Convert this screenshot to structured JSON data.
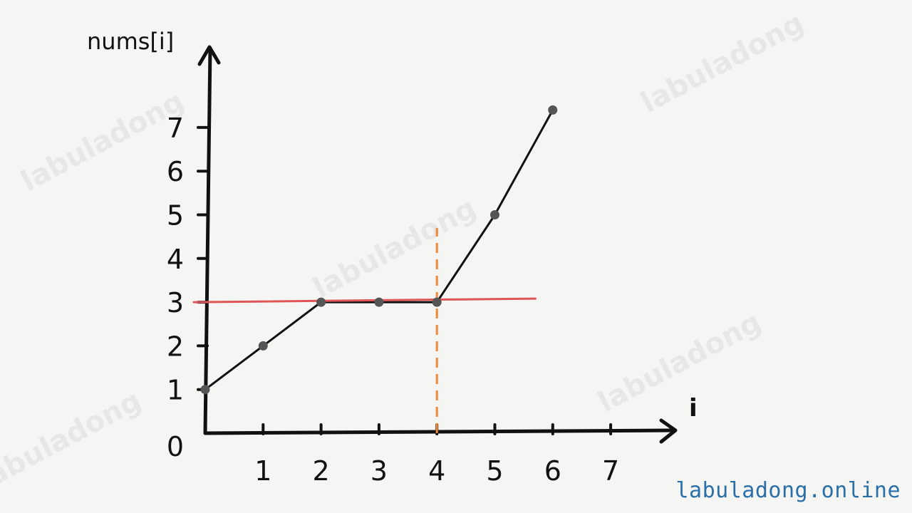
{
  "watermark_text": "labuladong",
  "footer": {
    "url": "labuladong.online"
  },
  "colors": {
    "axis": "#111111",
    "line": "#111111",
    "point": "#555555",
    "target_line": "#e05555",
    "marker_line": "#f0883a"
  },
  "chart_data": {
    "type": "line",
    "xlabel": "i",
    "ylabel": "nums[i]",
    "x_ticks": [
      1,
      2,
      3,
      4,
      5,
      6,
      7
    ],
    "y_ticks": [
      0,
      1,
      2,
      3,
      4,
      5,
      6,
      7
    ],
    "xlim": [
      0,
      7
    ],
    "ylim": [
      0,
      7
    ],
    "series": [
      {
        "x": [
          0,
          1,
          2,
          3,
          4,
          5,
          6
        ],
        "y": [
          1,
          2,
          3,
          3,
          3,
          5,
          7.4
        ]
      }
    ],
    "horizontal_line": {
      "y": 3,
      "x_range": [
        0,
        5.7
      ]
    },
    "vertical_marker": {
      "x": 4,
      "y_range": [
        0,
        4.7
      ]
    }
  }
}
